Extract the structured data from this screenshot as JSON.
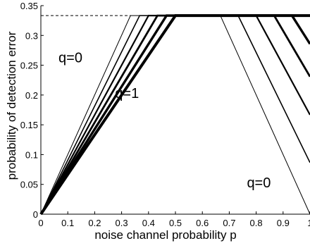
{
  "chart_data": {
    "type": "line",
    "title": "",
    "xlabel": "noise channel probability p",
    "ylabel": "probability of detection error",
    "xlim": [
      0,
      1
    ],
    "ylim": [
      0,
      0.35
    ],
    "grid": false,
    "legend": "none",
    "xticks": [
      "0",
      "0.1",
      "0.2",
      "0.3",
      "0.4",
      "0.5",
      "0.6",
      "0.7",
      "0.8",
      "0.9",
      "1"
    ],
    "yticks": [
      "0",
      "0.05",
      "0.1",
      "0.15",
      "0.2",
      "0.25",
      "0.3",
      "0.35"
    ],
    "reference_line": {
      "y": 0.3333,
      "style": "dashed"
    },
    "annotations": [
      {
        "text": "q=0",
        "x": 0.11,
        "y": 0.255
      },
      {
        "text": "q=1",
        "x": 0.32,
        "y": 0.195
      },
      {
        "text": "q=0",
        "x": 0.81,
        "y": 0.045
      }
    ],
    "series": [
      {
        "x": [
          0,
          0.333,
          0.667,
          1.0
        ],
        "y": [
          0,
          0.3333,
          0.3333,
          0
        ],
        "width": 1.0
      },
      {
        "x": [
          0,
          0.367,
          0.733,
          1.0
        ],
        "y": [
          0,
          0.3333,
          0.3333,
          0.0866
        ],
        "width": 1.6
      },
      {
        "x": [
          0,
          0.4,
          0.8,
          1.0
        ],
        "y": [
          0,
          0.3333,
          0.3333,
          0.1667
        ],
        "width": 2.2
      },
      {
        "x": [
          0,
          0.433,
          0.867,
          1.0
        ],
        "y": [
          0,
          0.3333,
          0.3333,
          0.2308
        ],
        "width": 2.8
      },
      {
        "x": [
          0,
          0.467,
          0.933,
          1.0
        ],
        "y": [
          0,
          0.3333,
          0.3333,
          0.2857
        ],
        "width": 3.4
      },
      {
        "x": [
          0,
          0.5,
          1.0
        ],
        "y": [
          0,
          0.3333,
          0.3333
        ],
        "width": 4.0
      }
    ]
  }
}
